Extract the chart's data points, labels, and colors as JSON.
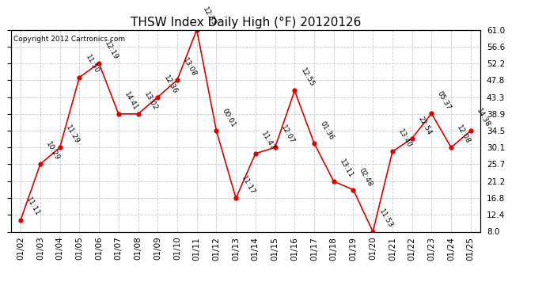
{
  "title": "THSW Index Daily High (°F) 20120126",
  "copyright": "Copyright 2012 Cartronics.com",
  "x_labels": [
    "01/02",
    "01/03",
    "01/04",
    "01/05",
    "01/06",
    "01/07",
    "01/08",
    "01/09",
    "01/10",
    "01/11",
    "01/12",
    "01/13",
    "01/14",
    "01/15",
    "01/16",
    "01/17",
    "01/18",
    "01/19",
    "01/20",
    "01/21",
    "01/22",
    "01/23",
    "01/24",
    "01/25"
  ],
  "y_values": [
    11.1,
    25.7,
    30.1,
    48.5,
    52.2,
    38.9,
    38.9,
    43.3,
    47.8,
    61.0,
    34.5,
    16.8,
    28.5,
    30.1,
    45.0,
    31.2,
    21.2,
    19.0,
    8.0,
    29.0,
    32.5,
    39.0,
    30.1,
    34.5
  ],
  "point_labels": [
    "11:11",
    "10:29",
    "11:29",
    "11:50",
    "12:19",
    "14:41",
    "13:02",
    "12:36",
    "13:08",
    "12:33",
    "00:01",
    "11:17",
    "11:47",
    "12:07",
    "12:55",
    "01:36",
    "13:11",
    "02:48",
    "11:53",
    "13:40",
    "22:54",
    "05:37",
    "12:08",
    "14:38"
  ],
  "ylim_min": 8.0,
  "ylim_max": 61.0,
  "yticks": [
    8.0,
    12.4,
    16.8,
    21.2,
    25.7,
    30.1,
    34.5,
    38.9,
    43.3,
    47.8,
    52.2,
    56.6,
    61.0
  ],
  "ytick_labels": [
    "8.0",
    "12.4",
    "16.8",
    "21.2",
    "25.7",
    "30.1",
    "34.5",
    "38.9",
    "43.3",
    "47.8",
    "52.2",
    "56.6",
    "61.0"
  ],
  "line_color": "#dd0000",
  "marker_color": "#dd0000",
  "bg_color": "#ffffff",
  "grid_color": "#bbbbbb",
  "title_fontsize": 11,
  "label_fontsize": 6.5,
  "tick_fontsize": 7.5,
  "copyright_fontsize": 6.5
}
